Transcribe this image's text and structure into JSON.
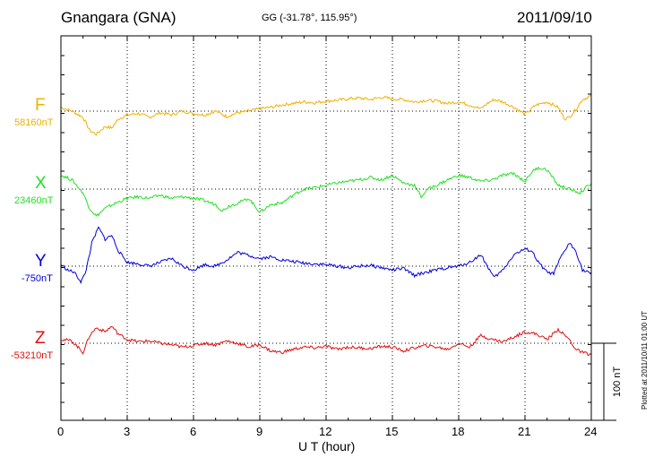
{
  "header": {
    "title": "Gnangara (GNA)",
    "coords": "GG (-31.78°, 115.95°)",
    "date": "2011/09/10"
  },
  "scale_label": "100 nT",
  "stamp": "Plotted at 2011/10/11 01:00 UT",
  "chart_data": {
    "type": "line",
    "title": "Gnangara (GNA)",
    "xlabel": "U T (hour)",
    "ylabel": "",
    "x_ticks": [
      "0",
      "3",
      "6",
      "9",
      "12",
      "15",
      "18",
      "21",
      "24"
    ],
    "xlim": [
      0,
      24
    ],
    "ylim_nT_per_100": 100,
    "grid": true,
    "series": [
      {
        "name": "F",
        "baseline_label": "58160nT",
        "color": "#f0b000",
        "x": [
          0,
          0.5,
          1.0,
          1.3,
          1.6,
          2.0,
          2.3,
          2.6,
          3.0,
          3.5,
          4.0,
          4.5,
          5.0,
          5.5,
          6.0,
          6.5,
          7.0,
          7.5,
          8.0,
          8.5,
          9.0,
          9.5,
          10.0,
          10.5,
          11.0,
          11.5,
          12.0,
          12.5,
          13.0,
          13.5,
          14.0,
          14.5,
          15.0,
          15.5,
          16.0,
          16.5,
          17.0,
          17.5,
          18.0,
          18.5,
          19.0,
          19.3,
          19.6,
          20.0,
          20.5,
          21.0,
          21.5,
          22.0,
          22.5,
          22.8,
          23.0,
          23.3,
          23.6,
          24.0
        ],
        "values": [
          5,
          0,
          -8,
          -25,
          -30,
          -20,
          -22,
          -10,
          -5,
          -3,
          -8,
          -2,
          -5,
          0,
          -3,
          -5,
          0,
          -7,
          -2,
          0,
          3,
          5,
          8,
          10,
          12,
          11,
          13,
          14,
          16,
          17,
          15,
          18,
          16,
          15,
          12,
          14,
          13,
          10,
          12,
          8,
          3,
          10,
          15,
          12,
          5,
          -4,
          8,
          12,
          5,
          -10,
          -8,
          2,
          15,
          20
        ]
      },
      {
        "name": "X",
        "baseline_label": "23460nT",
        "color": "#22e022",
        "x": [
          0,
          0.5,
          1.0,
          1.3,
          1.6,
          2.0,
          2.5,
          3.0,
          3.5,
          4.0,
          4.5,
          5.0,
          5.5,
          6.0,
          6.5,
          7.0,
          7.3,
          7.6,
          8.0,
          8.5,
          9.0,
          9.5,
          10.0,
          10.5,
          11.0,
          11.5,
          12.0,
          12.5,
          13.0,
          13.5,
          14.0,
          14.5,
          15.0,
          15.5,
          16.0,
          16.3,
          16.6,
          17.0,
          17.5,
          18.0,
          18.5,
          19.0,
          19.5,
          20.0,
          20.5,
          21.0,
          21.3,
          21.6,
          22.0,
          22.5,
          23.0,
          23.5,
          24.0
        ],
        "values": [
          18,
          12,
          -5,
          -25,
          -35,
          -25,
          -18,
          -12,
          -10,
          -12,
          -8,
          -12,
          -10,
          -12,
          -15,
          -20,
          -28,
          -22,
          -18,
          -12,
          -30,
          -20,
          -18,
          -8,
          0,
          2,
          5,
          8,
          10,
          12,
          15,
          12,
          18,
          8,
          5,
          -10,
          0,
          5,
          12,
          18,
          15,
          10,
          12,
          18,
          20,
          10,
          22,
          28,
          25,
          5,
          0,
          -5,
          8
        ]
      },
      {
        "name": "Y",
        "baseline_label": "-750nT",
        "color": "#0000e0",
        "x": [
          0,
          0.3,
          0.6,
          0.9,
          1.1,
          1.4,
          1.7,
          2.0,
          2.3,
          2.6,
          3.0,
          3.5,
          4.0,
          4.5,
          5.0,
          5.5,
          6.0,
          6.5,
          7.0,
          7.5,
          8.0,
          8.5,
          9.0,
          9.5,
          10.0,
          10.5,
          11.0,
          11.5,
          12.0,
          12.5,
          13.0,
          13.5,
          14.0,
          14.5,
          15.0,
          15.5,
          16.0,
          16.5,
          17.0,
          17.5,
          18.0,
          18.5,
          19.0,
          19.3,
          19.6,
          20.0,
          20.5,
          21.0,
          21.3,
          21.6,
          22.0,
          22.3,
          22.6,
          23.0,
          23.3,
          23.6,
          24.0
        ],
        "values": [
          2,
          -5,
          -8,
          -20,
          -10,
          30,
          50,
          35,
          40,
          20,
          5,
          3,
          0,
          5,
          10,
          0,
          -5,
          2,
          0,
          8,
          18,
          14,
          10,
          12,
          8,
          6,
          4,
          3,
          2,
          0,
          -2,
          0,
          1,
          -2,
          -5,
          -3,
          -12,
          -8,
          -5,
          -2,
          0,
          5,
          15,
          0,
          -15,
          -5,
          15,
          22,
          20,
          5,
          -8,
          -10,
          10,
          30,
          20,
          -5,
          -10
        ]
      },
      {
        "name": "Z",
        "baseline_label": "-53210nT",
        "color": "#e01010",
        "x": [
          0,
          0.5,
          1.0,
          1.3,
          1.6,
          2.0,
          2.3,
          2.6,
          3.0,
          3.5,
          4.0,
          4.5,
          5.0,
          5.5,
          6.0,
          6.5,
          7.0,
          7.5,
          8.0,
          8.5,
          9.0,
          9.5,
          10.0,
          10.5,
          11.0,
          11.5,
          12.0,
          12.5,
          13.0,
          13.5,
          14.0,
          14.5,
          15.0,
          15.5,
          16.0,
          16.5,
          17.0,
          17.5,
          18.0,
          18.5,
          19.0,
          19.5,
          20.0,
          20.5,
          21.0,
          21.5,
          22.0,
          22.5,
          23.0,
          23.3,
          23.6,
          24.0
        ],
        "values": [
          5,
          3,
          -12,
          10,
          20,
          15,
          22,
          12,
          5,
          2,
          3,
          0,
          -2,
          -5,
          -3,
          0,
          -2,
          3,
          0,
          -5,
          -2,
          -10,
          -12,
          -8,
          -5,
          -6,
          -4,
          -8,
          -5,
          -6,
          -7,
          -4,
          -5,
          -10,
          -6,
          -3,
          -5,
          -8,
          0,
          -5,
          10,
          5,
          2,
          8,
          15,
          12,
          5,
          18,
          5,
          -8,
          -12,
          -15
        ]
      }
    ]
  }
}
